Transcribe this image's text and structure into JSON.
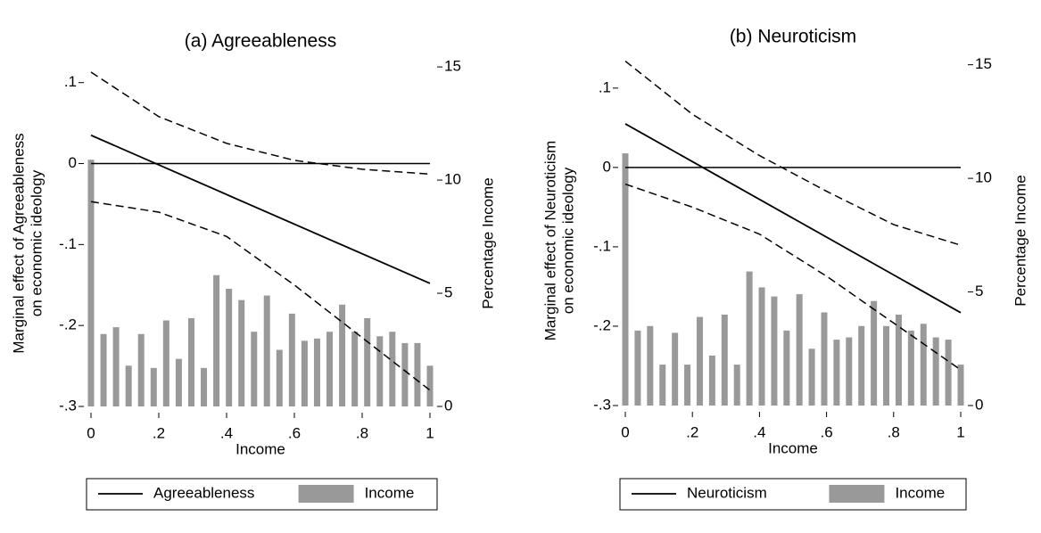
{
  "chart_data": [
    {
      "type": "line",
      "title": "(a) Agreeableness",
      "xlabel": "Income",
      "ylabel": [
        "Marginal effect of Agreeableness",
        "on economic ideology"
      ],
      "y2label": "Percentage Income",
      "xlim": [
        0,
        1
      ],
      "xticks": [
        0,
        {
          "value": 0.2,
          "label": ".2"
        },
        {
          "value": 0.4,
          "label": ".4"
        },
        {
          "value": 0.6,
          "label": ".6"
        },
        {
          "value": 0.8,
          "label": ".8"
        },
        1
      ],
      "ylim": [
        -0.3,
        0.125
      ],
      "yticks": [
        {
          "value": -0.3,
          "label": "-.3"
        },
        {
          "value": -0.2,
          "label": "-.2"
        },
        {
          "value": -0.1,
          "label": "-.1"
        },
        0,
        {
          "value": 0.1,
          "label": ".1"
        }
      ],
      "y2lim": [
        0,
        15.2
      ],
      "y2ticks": [
        0,
        5,
        10,
        15
      ],
      "refline": 0,
      "series": [
        {
          "name": "Agreeableness",
          "color": "#000000",
          "x": [
            0,
            1
          ],
          "values": [
            0.035,
            -0.148
          ]
        },
        {
          "name": "Income",
          "type": "bar",
          "axis": "y2",
          "color": "#999999",
          "x": [
            0,
            0.037,
            0.074,
            0.111,
            0.148,
            0.185,
            0.222,
            0.259,
            0.296,
            0.333,
            0.37,
            0.407,
            0.444,
            0.481,
            0.519,
            0.556,
            0.593,
            0.63,
            0.667,
            0.704,
            0.741,
            0.778,
            0.815,
            0.852,
            0.889,
            0.926,
            0.963,
            1
          ],
          "values": [
            10.9,
            3.2,
            3.5,
            1.8,
            3.2,
            1.7,
            3.8,
            2.1,
            3.9,
            1.7,
            5.8,
            5.2,
            4.7,
            3.3,
            4.9,
            2.5,
            4.1,
            2.9,
            3.0,
            3.3,
            4.5,
            3.3,
            3.9,
            3.1,
            3.3,
            2.8,
            2.8,
            1.8
          ]
        }
      ],
      "ci": {
        "x": [
          0,
          0.2,
          0.4,
          0.6,
          0.8,
          1
        ],
        "upper": [
          0.113,
          0.058,
          0.025,
          0.004,
          -0.007,
          -0.013
        ],
        "lower": [
          -0.047,
          -0.06,
          -0.09,
          -0.15,
          -0.215,
          -0.28
        ]
      }
    },
    {
      "type": "line",
      "title": "(b) Neuroticism",
      "xlabel": "Income",
      "ylabel": [
        "Marginal effect of Neuroticism",
        "on economic ideology"
      ],
      "y2label": "Percentage Income",
      "xlim": [
        0,
        1
      ],
      "xticks": [
        0,
        {
          "value": 0.2,
          "label": ".2"
        },
        {
          "value": 0.4,
          "label": ".4"
        },
        {
          "value": 0.6,
          "label": ".6"
        },
        {
          "value": 0.8,
          "label": ".8"
        },
        1
      ],
      "ylim": [
        -0.3,
        0.138
      ],
      "yticks": [
        {
          "value": -0.3,
          "label": "-.3"
        },
        {
          "value": -0.2,
          "label": "-.2"
        },
        {
          "value": -0.1,
          "label": "-.1"
        },
        0,
        {
          "value": 0.1,
          "label": ".1"
        }
      ],
      "y2lim": [
        0,
        15.3
      ],
      "y2ticks": [
        0,
        5,
        10,
        15
      ],
      "refline": 0,
      "series": [
        {
          "name": "Neuroticism",
          "color": "#000000",
          "x": [
            0,
            1
          ],
          "values": [
            0.055,
            -0.183
          ]
        },
        {
          "name": "Income",
          "type": "bar",
          "axis": "y2",
          "color": "#999999",
          "x": [
            0,
            0.037,
            0.074,
            0.111,
            0.148,
            0.185,
            0.222,
            0.259,
            0.296,
            0.333,
            0.37,
            0.407,
            0.444,
            0.481,
            0.519,
            0.556,
            0.593,
            0.63,
            0.667,
            0.704,
            0.741,
            0.778,
            0.815,
            0.852,
            0.889,
            0.926,
            0.963,
            1
          ],
          "values": [
            11.1,
            3.3,
            3.5,
            1.8,
            3.2,
            1.8,
            3.9,
            2.2,
            4.0,
            1.8,
            5.9,
            5.2,
            4.8,
            3.3,
            4.9,
            2.5,
            4.1,
            2.9,
            3.0,
            3.5,
            4.6,
            3.5,
            4.0,
            3.3,
            3.6,
            3.0,
            2.9,
            1.8
          ]
        }
      ],
      "ci": {
        "x": [
          0,
          0.2,
          0.4,
          0.6,
          0.8,
          1
        ],
        "upper": [
          0.134,
          0.067,
          0.015,
          -0.03,
          -0.072,
          -0.098
        ],
        "lower": [
          -0.021,
          -0.05,
          -0.084,
          -0.137,
          -0.196,
          -0.255
        ]
      }
    }
  ]
}
